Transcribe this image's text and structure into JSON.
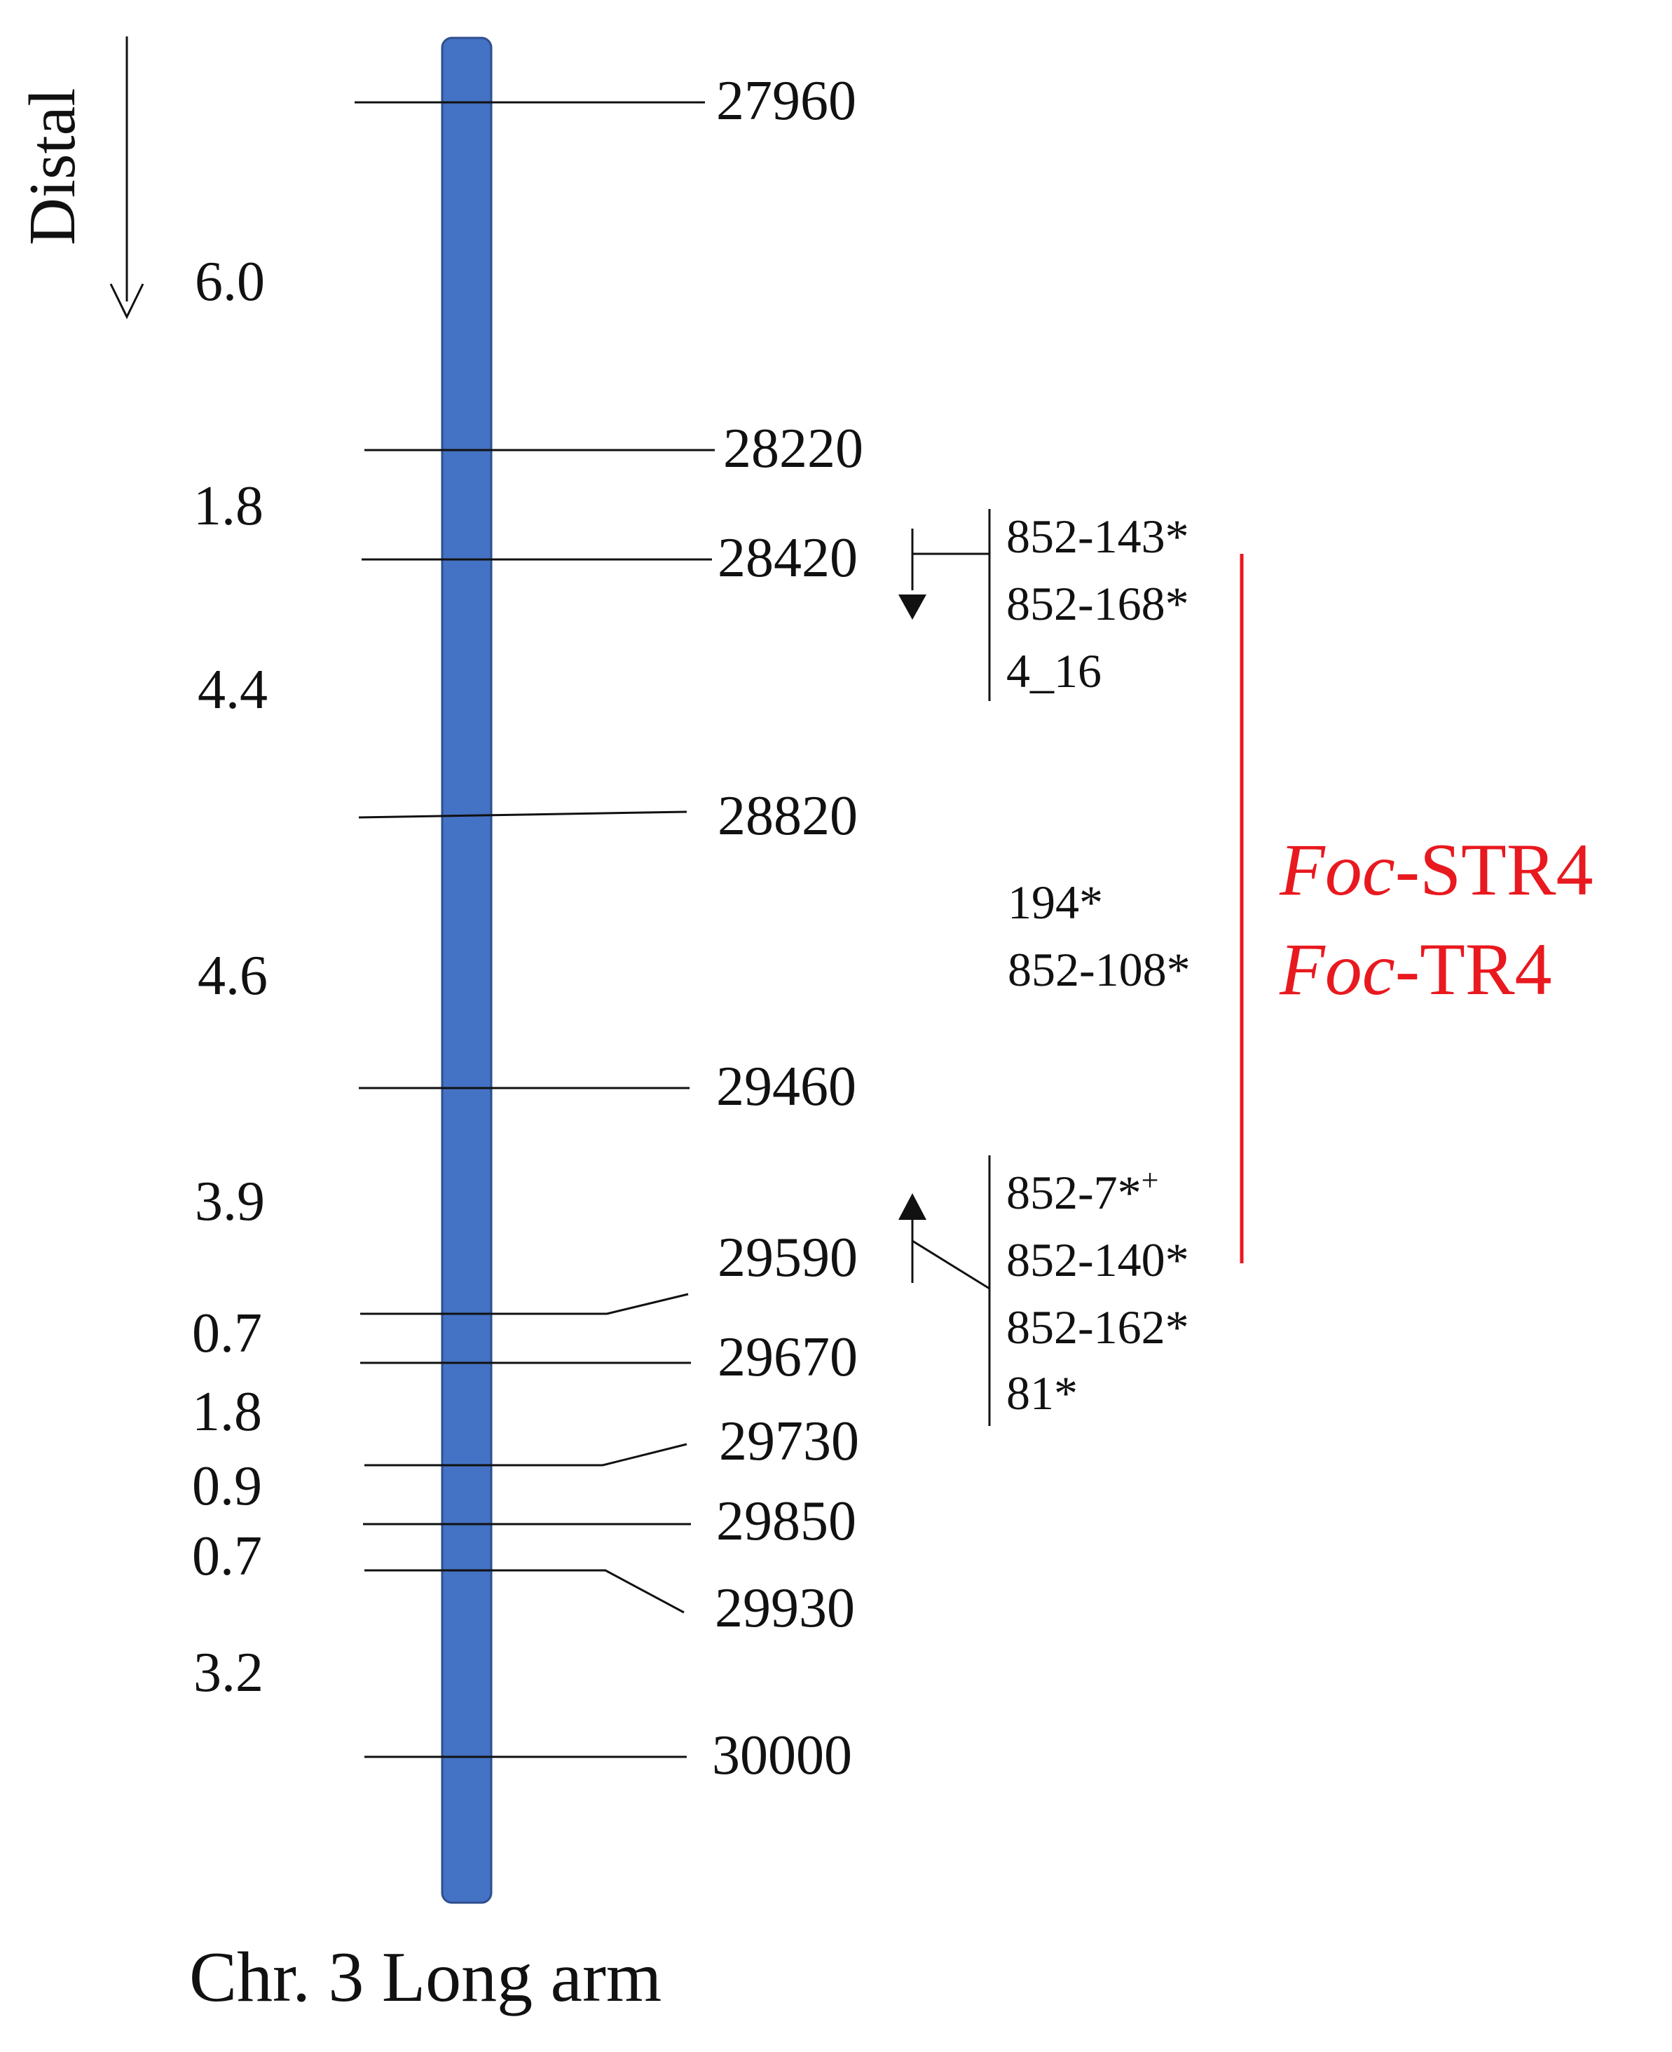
{
  "orientation": {
    "label": "Distal"
  },
  "chromosome": {
    "color": "#4472c4",
    "caption": "Chr. 3 Long arm"
  },
  "positions": [
    {
      "label": "27960"
    },
    {
      "label": "28220"
    },
    {
      "label": "28420"
    },
    {
      "label": "28820"
    },
    {
      "label": "29460"
    },
    {
      "label": "29590"
    },
    {
      "label": "29670"
    },
    {
      "label": "29730"
    },
    {
      "label": "29850"
    },
    {
      "label": "29930"
    },
    {
      "label": "30000"
    }
  ],
  "distances": [
    "6.0",
    "1.8",
    "4.4",
    "4.6",
    "3.9",
    "0.7",
    "1.8",
    "0.9",
    "0.7",
    "3.2"
  ],
  "marker_groups": [
    {
      "markers": [
        "852-143*",
        "852-168*",
        "4_16"
      ]
    },
    {
      "markers": [
        "194*",
        "852-108*"
      ]
    },
    {
      "markers": [
        "852-7*",
        "852-140*",
        "852-162*",
        "81*"
      ],
      "superscript": "+"
    }
  ],
  "resistance": {
    "color": "#e8191f",
    "loci": [
      {
        "italic": "Foc",
        "rest": "-STR4"
      },
      {
        "italic": "Foc",
        "rest": "-TR4"
      }
    ]
  }
}
